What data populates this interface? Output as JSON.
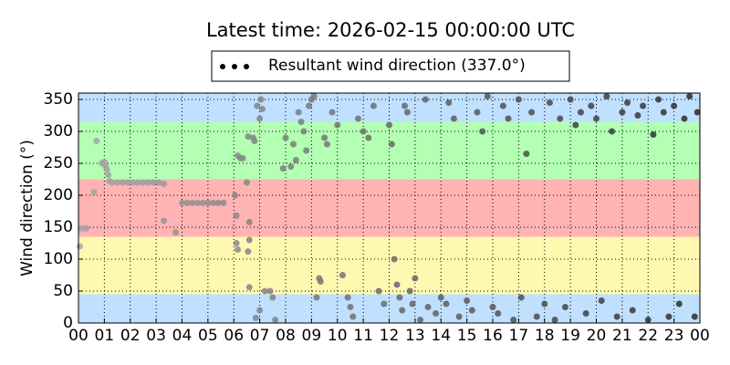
{
  "chart_data": {
    "type": "scatter",
    "title": "Latest time: 2026-02-15 00:00:00 UTC",
    "y_label": "Wind direction (°)",
    "xlim": [
      0,
      24
    ],
    "ylim": [
      0,
      360
    ],
    "xticks": [
      {
        "value": 0,
        "label": "00"
      },
      {
        "value": 1,
        "label": "01"
      },
      {
        "value": 2,
        "label": "02"
      },
      {
        "value": 3,
        "label": "03"
      },
      {
        "value": 4,
        "label": "04"
      },
      {
        "value": 5,
        "label": "05"
      },
      {
        "value": 6,
        "label": "06"
      },
      {
        "value": 7,
        "label": "07"
      },
      {
        "value": 8,
        "label": "08"
      },
      {
        "value": 9,
        "label": "09"
      },
      {
        "value": 10,
        "label": "10"
      },
      {
        "value": 11,
        "label": "11"
      },
      {
        "value": 12,
        "label": "12"
      },
      {
        "value": 13,
        "label": "13"
      },
      {
        "value": 14,
        "label": "14"
      },
      {
        "value": 15,
        "label": "15"
      },
      {
        "value": 16,
        "label": "16"
      },
      {
        "value": 17,
        "label": "17"
      },
      {
        "value": 18,
        "label": "18"
      },
      {
        "value": 19,
        "label": "19"
      },
      {
        "value": 20,
        "label": "20"
      },
      {
        "value": 21,
        "label": "21"
      },
      {
        "value": 22,
        "label": "22"
      },
      {
        "value": 23,
        "label": "23"
      },
      {
        "value": 24,
        "label": "00"
      }
    ],
    "yticks": [
      0,
      50,
      100,
      150,
      200,
      250,
      300,
      350
    ],
    "grid": true,
    "bands": [
      {
        "from": 0,
        "to": 45,
        "color": "#bfe0ff"
      },
      {
        "from": 45,
        "to": 135,
        "color": "#fff8b0"
      },
      {
        "from": 135,
        "to": 225,
        "color": "#ffb3b3"
      },
      {
        "from": 225,
        "to": 315,
        "color": "#b3ffb3"
      },
      {
        "from": 315,
        "to": 360,
        "color": "#bfe0ff"
      }
    ],
    "series": [
      {
        "name": "Resultant wind direction (337.0°)",
        "color_range": [
          "#a8a8a8",
          "#2a2a2a"
        ],
        "x": [
          0.05,
          0.1,
          0.25,
          0.3,
          0.7,
          0.9,
          1.0,
          1.05,
          1.1,
          1.15,
          1.2,
          1.3,
          1.5,
          1.7,
          1.9,
          2.1,
          2.3,
          2.5,
          2.7,
          2.9,
          3.1,
          3.3,
          3.3,
          0.6,
          3.75,
          4.0,
          4.2,
          4.4,
          4.6,
          4.8,
          5.0,
          5.2,
          5.4,
          5.6,
          6.05,
          6.1,
          6.15,
          6.25,
          6.35,
          6.5,
          6.1,
          6.15,
          6.55,
          6.6,
          6.6,
          6.55,
          6.6,
          6.75,
          6.8,
          6.85,
          7.0,
          7.2,
          7.4,
          7.5,
          7.6,
          6.9,
          7.0,
          7.05,
          7.1,
          7.9,
          8.2,
          8.4,
          8.0,
          8.3,
          8.5,
          8.6,
          8.7,
          8.8,
          8.9,
          9.0,
          9.1,
          9.2,
          9.3,
          9.35,
          9.5,
          9.6,
          9.8,
          10.0,
          10.2,
          10.4,
          10.5,
          10.6,
          10.8,
          11.0,
          11.2,
          11.4,
          11.6,
          11.8,
          12.0,
          12.1,
          12.2,
          12.3,
          12.4,
          12.5,
          12.6,
          12.7,
          12.8,
          12.9,
          13.0,
          13.2,
          13.4,
          13.5,
          13.8,
          14.0,
          14.2,
          14.3,
          14.5,
          14.7,
          15.0,
          15.2,
          15.4,
          15.6,
          15.8,
          16.0,
          16.2,
          16.4,
          16.6,
          16.8,
          17.0,
          17.1,
          17.3,
          17.5,
          17.7,
          18.0,
          18.2,
          18.4,
          18.6,
          18.8,
          19.0,
          19.2,
          19.4,
          19.6,
          19.8,
          20.0,
          20.2,
          20.4,
          20.6,
          20.8,
          21.0,
          21.2,
          21.4,
          21.6,
          21.8,
          22.0,
          22.2,
          22.4,
          22.6,
          22.8,
          23.0,
          23.2,
          23.4,
          23.6,
          23.8,
          23.9
        ],
        "values": [
          120,
          148,
          148,
          148,
          285,
          250,
          252,
          245,
          240,
          232,
          222,
          220,
          220,
          220,
          220,
          220,
          220,
          220,
          220,
          220,
          220,
          218,
          160,
          205,
          142,
          188,
          188,
          188,
          188,
          188,
          188,
          188,
          188,
          188,
          200,
          168,
          262,
          258,
          258,
          220,
          125,
          115,
          292,
          158,
          130,
          112,
          56,
          290,
          285,
          8,
          20,
          50,
          50,
          40,
          5,
          340,
          320,
          350,
          335,
          242,
          245,
          255,
          290,
          280,
          330,
          315,
          300,
          270,
          340,
          350,
          355,
          40,
          70,
          65,
          290,
          280,
          330,
          310,
          75,
          40,
          25,
          10,
          320,
          300,
          290,
          340,
          50,
          30,
          310,
          280,
          100,
          60,
          40,
          20,
          340,
          330,
          50,
          30,
          70,
          5,
          350,
          25,
          15,
          40,
          30,
          345,
          320,
          10,
          35,
          20,
          330,
          300,
          355,
          25,
          15,
          340,
          320,
          5,
          350,
          40,
          265,
          330,
          10,
          30,
          345,
          5,
          320,
          25,
          350,
          310,
          330,
          15,
          340,
          320,
          35,
          355,
          300,
          10,
          330,
          345,
          20,
          325,
          340,
          5,
          295,
          350,
          330,
          10,
          340,
          30,
          320,
          355,
          10,
          330
        ]
      }
    ]
  }
}
